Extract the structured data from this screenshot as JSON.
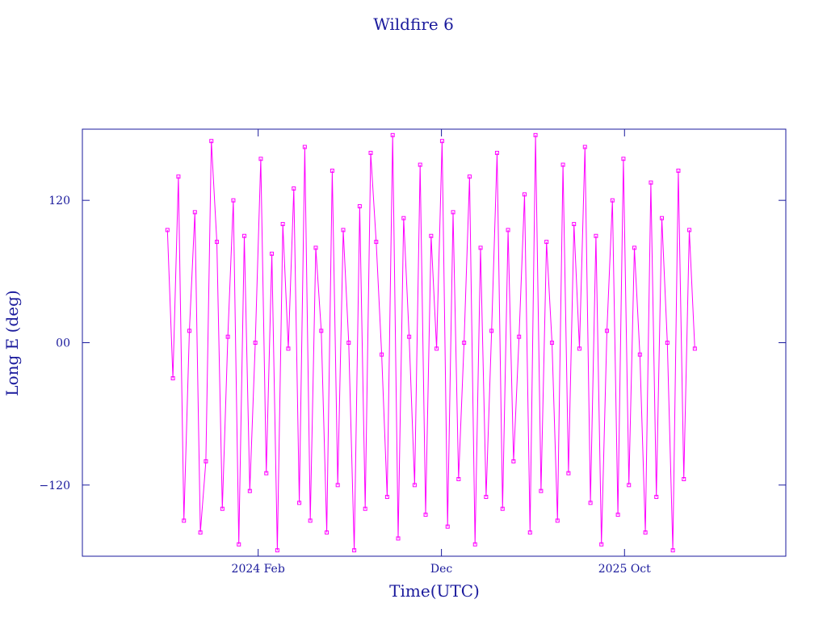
{
  "chart_data": {
    "type": "line",
    "title": "Wildfire 6",
    "x_label": "Time(UTC)",
    "y_label": "Long E (deg)",
    "xlim": [
      2023.283,
      2026.484
    ],
    "xticks": [
      {
        "value": 2024.083,
        "label": "2024 Feb"
      },
      {
        "value": 2024.917,
        "label": "Dec"
      },
      {
        "value": 2025.75,
        "label": "2025 Oct"
      }
    ],
    "ylim": [
      -180,
      180
    ],
    "yticks": [
      {
        "value": -120,
        "label": "−120"
      },
      {
        "value": 0,
        "label": "00"
      },
      120
    ],
    "x": [
      2023.67,
      2023.695,
      2023.72,
      2023.745,
      2023.77,
      2023.795,
      2023.82,
      2023.845,
      2023.87,
      2023.895,
      2023.92,
      2023.945,
      2023.97,
      2023.995,
      2024.02,
      2024.045,
      2024.07,
      2024.095,
      2024.12,
      2024.145,
      2024.17,
      2024.195,
      2024.22,
      2024.245,
      2024.27,
      2024.295,
      2024.32,
      2024.345,
      2024.37,
      2024.395,
      2024.42,
      2024.445,
      2024.47,
      2024.495,
      2024.52,
      2024.545,
      2024.57,
      2024.595,
      2024.62,
      2024.645,
      2024.67,
      2024.695,
      2024.72,
      2024.745,
      2024.77,
      2024.795,
      2024.82,
      2024.845,
      2024.87,
      2024.895,
      2024.92,
      2024.945,
      2024.97,
      2024.995,
      2025.02,
      2025.045,
      2025.07,
      2025.095,
      2025.12,
      2025.145,
      2025.17,
      2025.195,
      2025.22,
      2025.245,
      2025.27,
      2025.295,
      2025.32,
      2025.345,
      2025.37,
      2025.395,
      2025.42,
      2025.445,
      2025.47,
      2025.495,
      2025.52,
      2025.545,
      2025.57,
      2025.595,
      2025.62,
      2025.645,
      2025.67,
      2025.695,
      2025.72,
      2025.745,
      2025.77,
      2025.795,
      2025.82,
      2025.845,
      2025.87,
      2025.895,
      2025.92,
      2025.945,
      2025.97,
      2025.995,
      2026.02,
      2026.045,
      2026.07
    ],
    "series": [
      {
        "color": "#ff00ff",
        "values": [
          95,
          -30,
          140,
          -150,
          10,
          110,
          -160,
          -100,
          170,
          85,
          -140,
          5,
          120,
          -170,
          90,
          -125,
          0,
          155,
          -110,
          75,
          -175,
          100,
          -5,
          130,
          -135,
          165,
          -150,
          80,
          10,
          -160,
          145,
          -120,
          95,
          0,
          -175,
          115,
          -140,
          160,
          85,
          -10,
          -130,
          175,
          -165,
          105,
          5,
          -120,
          150,
          -145,
          90,
          -5,
          170,
          -155,
          110,
          -115,
          0,
          140,
          -170,
          80,
          -130,
          10,
          160,
          -140,
          95,
          -100,
          5,
          125,
          -160,
          175,
          -125,
          85,
          0,
          -150,
          150,
          -110,
          100,
          -5,
          165,
          -135,
          90,
          -170,
          10,
          120,
          -145,
          155,
          -120,
          80,
          -10,
          -160,
          135,
          -130,
          105,
          0,
          -175,
          145,
          -115,
          95,
          -5
        ]
      }
    ]
  }
}
